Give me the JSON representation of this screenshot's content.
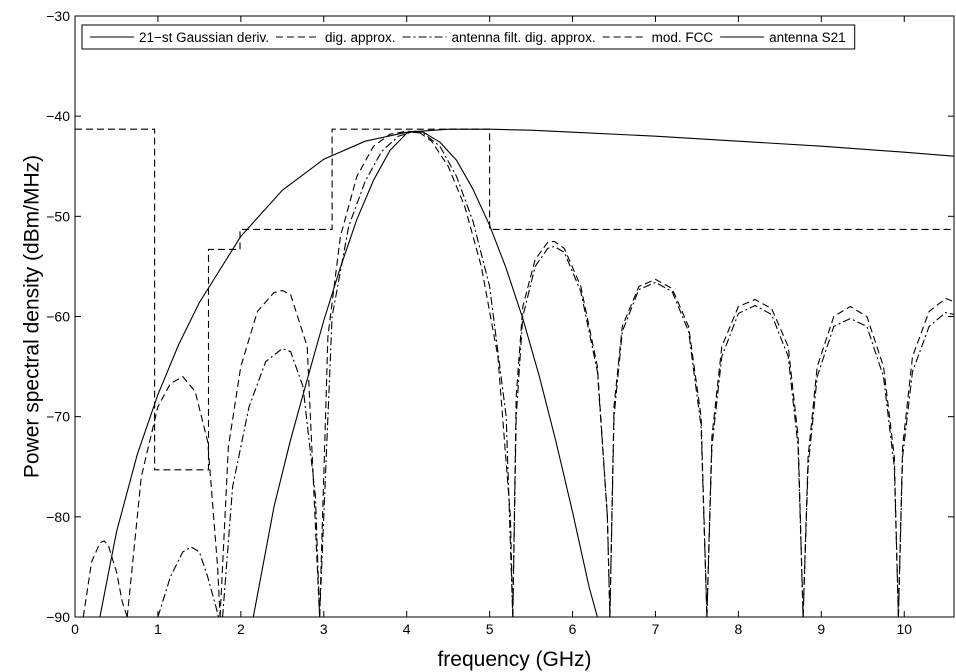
{
  "chart_data": {
    "type": "line",
    "xlabel": "frequency (GHz)",
    "ylabel": "Power spectral density (dBm/MHz)",
    "xlim": [
      0,
      10.6
    ],
    "ylim": [
      -90,
      -30
    ],
    "xticks": [
      0,
      1,
      2,
      3,
      4,
      5,
      6,
      7,
      8,
      9,
      10
    ],
    "yticks": [
      -90,
      -80,
      -70,
      -60,
      -50,
      -40,
      -30
    ],
    "xtick_labels": [
      "0",
      "1",
      "2",
      "3",
      "4",
      "5",
      "6",
      "7",
      "8",
      "9",
      "10"
    ],
    "ytick_labels": [
      "−90",
      "−80",
      "−70",
      "−60",
      "−50",
      "−40",
      "−30"
    ],
    "grid": false,
    "legend_position": "top",
    "series": [
      {
        "name": "21−st Gaussian deriv.",
        "style": "solid",
        "x": [
          2.15,
          2.4,
          2.6,
          2.8,
          3.0,
          3.2,
          3.4,
          3.6,
          3.8,
          4.0,
          4.1,
          4.2,
          4.4,
          4.6,
          4.8,
          5.0,
          5.2,
          5.4,
          5.6,
          5.8,
          6.0,
          6.2,
          6.3
        ],
        "y": [
          -90,
          -79,
          -72.3,
          -66.3,
          -60.4,
          -55.1,
          -50.3,
          -46.4,
          -43.4,
          -41.7,
          -41.5,
          -41.6,
          -42.6,
          -44.4,
          -47.3,
          -50.9,
          -55.2,
          -60.2,
          -66.0,
          -72.5,
          -79.5,
          -87.0,
          -90
        ]
      },
      {
        "name": "dig. approx.",
        "style": "dashed",
        "segments": [
          {
            "x": [
              0.1,
              0.2,
              0.3,
              0.35,
              0.4,
              0.5,
              0.57,
              0.63
            ],
            "y": [
              -90,
              -84.5,
              -82.6,
              -82.4,
              -82.8,
              -85.5,
              -88.5,
              -90
            ]
          },
          {
            "x": [
              0.63,
              0.8,
              1.0,
              1.15,
              1.3,
              1.45,
              1.6,
              1.72,
              1.75
            ],
            "y": [
              -90,
              -76,
              -69,
              -66.7,
              -66.0,
              -67.5,
              -72.5,
              -85,
              -90
            ]
          },
          {
            "x": [
              1.75,
              1.85,
              2.0,
              2.2,
              2.4,
              2.5,
              2.6,
              2.8,
              2.95
            ],
            "y": [
              -90,
              -73,
              -65,
              -59.5,
              -57.6,
              -57.4,
              -57.8,
              -63,
              -90
            ]
          },
          {
            "x": [
              2.95,
              3.05,
              3.2,
              3.4,
              3.6,
              3.8,
              4.0,
              4.15,
              4.3,
              4.5,
              4.7,
              4.9,
              5.1,
              5.25,
              5.28
            ],
            "y": [
              -90,
              -62,
              -52,
              -46,
              -43,
              -41.8,
              -41.5,
              -41.6,
              -42.5,
              -45,
              -49,
              -55,
              -64,
              -80,
              -90
            ]
          },
          {
            "x": [
              5.28,
              5.32,
              5.4,
              5.55,
              5.7,
              5.78,
              5.9,
              6.1,
              6.3,
              6.42,
              6.45
            ],
            "y": [
              -90,
              -68,
              -59,
              -54.3,
              -52.6,
              -52.5,
              -53.2,
              -57,
              -65,
              -80,
              -90
            ]
          },
          {
            "x": [
              6.45,
              6.5,
              6.6,
              6.8,
              7.0,
              7.2,
              7.4,
              7.55,
              7.62
            ],
            "y": [
              -90,
              -69,
              -61,
              -57,
              -56.3,
              -57.2,
              -61,
              -70,
              -90
            ]
          },
          {
            "x": [
              7.62,
              7.68,
              7.8,
              8.0,
              8.2,
              8.4,
              8.6,
              8.72,
              8.78
            ],
            "y": [
              -90,
              -72,
              -63,
              -59,
              -58.3,
              -59.2,
              -63,
              -72,
              -90
            ]
          },
          {
            "x": [
              8.78,
              8.84,
              8.95,
              9.15,
              9.35,
              9.55,
              9.75,
              9.88,
              9.93
            ],
            "y": [
              -90,
              -74,
              -65,
              -60,
              -59.0,
              -60,
              -65,
              -74,
              -90
            ]
          },
          {
            "x": [
              9.93,
              9.98,
              10.1,
              10.3,
              10.5,
              10.6
            ],
            "y": [
              -90,
              -73,
              -64,
              -59.5,
              -58.2,
              -58.5
            ]
          }
        ]
      },
      {
        "name": "antenna filt. dig. approx.",
        "style": "dashdot",
        "segments": [
          {
            "x": [
              1.0,
              1.15,
              1.3,
              1.4,
              1.5,
              1.6,
              1.7,
              1.73
            ],
            "y": [
              -90,
              -86,
              -83.5,
              -83.0,
              -83.5,
              -86,
              -89,
              -90
            ]
          },
          {
            "x": [
              1.78,
              1.9,
              2.1,
              2.3,
              2.5,
              2.6,
              2.75,
              2.9,
              2.95
            ],
            "y": [
              -90,
              -77,
              -69,
              -64.5,
              -63.2,
              -63.5,
              -67,
              -78,
              -90
            ]
          },
          {
            "x": [
              2.95,
              3.1,
              3.3,
              3.5,
              3.7,
              3.9,
              4.05,
              4.2,
              4.4,
              4.6,
              4.8,
              5.0,
              5.2,
              5.28
            ],
            "y": [
              -90,
              -60,
              -51,
              -46.5,
              -43.5,
              -42,
              -41.6,
              -41.7,
              -43,
              -46,
              -50.5,
              -57,
              -70,
              -90
            ]
          },
          {
            "x": [
              5.28,
              5.32,
              5.4,
              5.55,
              5.7,
              5.78,
              5.9,
              6.1,
              6.3,
              6.42,
              6.45
            ],
            "y": [
              -90,
              -70,
              -60,
              -55,
              -53.2,
              -53.0,
              -53.6,
              -57.5,
              -65.5,
              -80,
              -90
            ]
          },
          {
            "x": [
              6.45,
              6.5,
              6.6,
              6.8,
              7.0,
              7.2,
              7.4,
              7.55,
              7.62
            ],
            "y": [
              -90,
              -70,
              -61.5,
              -57.3,
              -56.6,
              -57.5,
              -61.5,
              -71,
              -90
            ]
          },
          {
            "x": [
              7.62,
              7.68,
              7.8,
              8.0,
              8.2,
              8.4,
              8.6,
              8.72,
              8.78
            ],
            "y": [
              -90,
              -73,
              -64,
              -59.7,
              -58.9,
              -59.8,
              -64,
              -73,
              -90
            ]
          },
          {
            "x": [
              8.78,
              8.84,
              8.95,
              9.15,
              9.35,
              9.55,
              9.75,
              9.88,
              9.93
            ],
            "y": [
              -90,
              -75,
              -66,
              -61,
              -60.2,
              -61,
              -66,
              -75,
              -90
            ]
          },
          {
            "x": [
              9.93,
              9.98,
              10.1,
              10.3,
              10.5,
              10.6
            ],
            "y": [
              -90,
              -74,
              -65.5,
              -61,
              -59.6,
              -59.8
            ]
          }
        ]
      },
      {
        "name": "mod. FCC",
        "style": "dashed",
        "x": [
          0,
          0.96,
          0.96,
          1.61,
          1.61,
          1.99,
          1.99,
          3.1,
          3.1,
          5.0,
          5.0,
          10.6
        ],
        "y": [
          -41.3,
          -41.3,
          -75.3,
          -75.3,
          -53.3,
          -53.3,
          -51.3,
          -51.3,
          -41.3,
          -41.3,
          -51.3,
          -51.3
        ]
      },
      {
        "name": "antenna S21",
        "style": "solid",
        "x": [
          0.3,
          0.5,
          0.75,
          1.0,
          1.25,
          1.5,
          2.0,
          2.5,
          3.0,
          3.5,
          4.0,
          4.5,
          5.0,
          5.5,
          6.0,
          7.0,
          8.0,
          9.0,
          10.0,
          10.6
        ],
        "y": [
          -90,
          -81.5,
          -73.8,
          -67.8,
          -62.8,
          -58.6,
          -52.0,
          -47.4,
          -44.3,
          -42.5,
          -41.6,
          -41.3,
          -41.3,
          -41.4,
          -41.6,
          -42.0,
          -42.5,
          -43.0,
          -43.6,
          -44.0
        ]
      }
    ]
  }
}
